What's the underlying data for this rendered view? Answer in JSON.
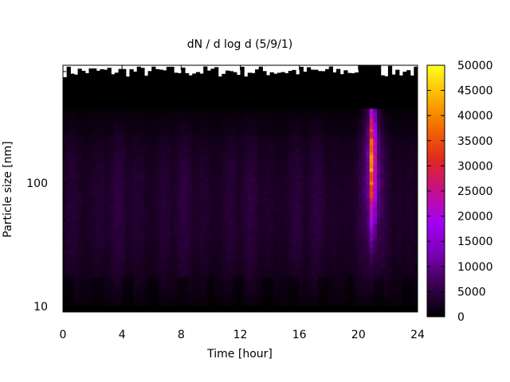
{
  "chart_data": {
    "type": "heatmap",
    "title": "dN / d log d (5/9/1)",
    "xlabel": "Time [hour]",
    "ylabel": "Particle size [nm]",
    "xlim": [
      0,
      24
    ],
    "ylim": [
      9,
      900
    ],
    "y_scale": "log",
    "x_ticks": [
      0,
      4,
      8,
      12,
      16,
      20,
      24
    ],
    "y_tick_labels": [
      {
        "value": 10,
        "label": "10"
      },
      {
        "value": 100,
        "label": "100"
      }
    ],
    "colorbar": {
      "min": 0,
      "max": 50000,
      "ticks": [
        0,
        5000,
        10000,
        15000,
        20000,
        25000,
        30000,
        35000,
        40000,
        45000,
        50000
      ],
      "palette": [
        "#000000",
        "#3a0050",
        "#7a00b4",
        "#a400f6",
        "#c4108c",
        "#e02820",
        "#f26a00",
        "#fbb400",
        "#ffff20"
      ]
    },
    "measured_size_range_nm": [
      10,
      400
    ],
    "background_level": 4000,
    "event": {
      "time_range_hour": [
        20.5,
        21.3
      ],
      "peak_time_hour": 20.95,
      "peak_size_nm": 150,
      "peak_value": 33000
    }
  }
}
